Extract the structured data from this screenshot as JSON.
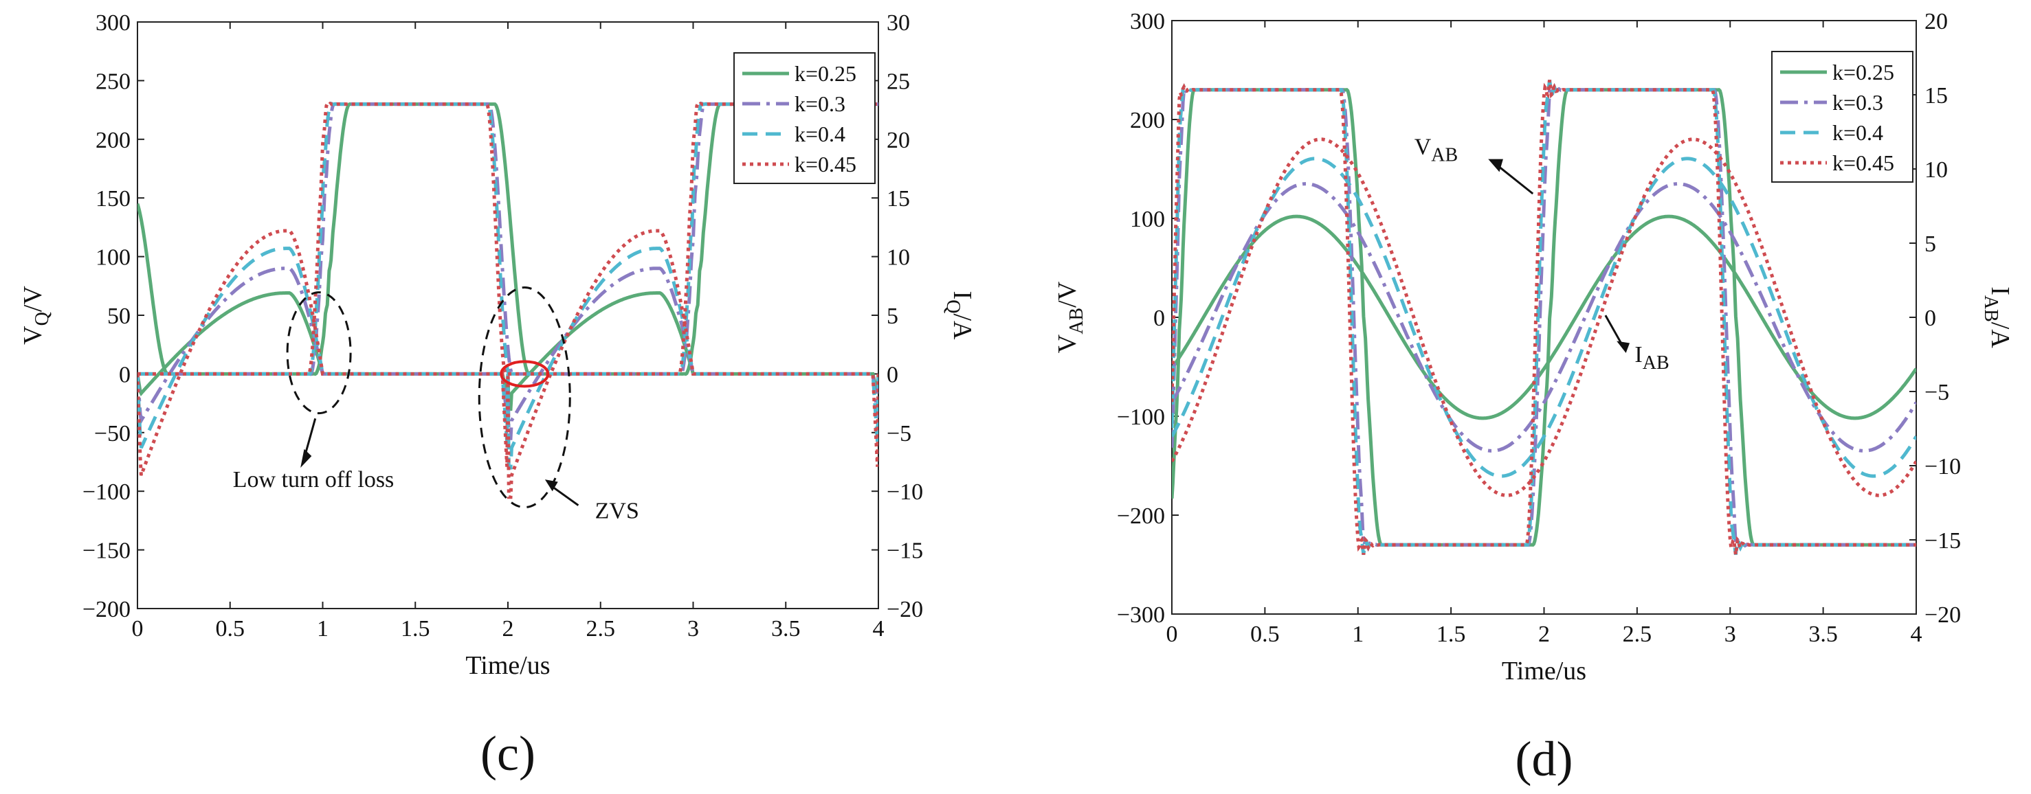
{
  "colors": {
    "k025": "#5aab78",
    "k03": "#8a7cc2",
    "k04": "#4fb8cf",
    "k045": "#cf4b50",
    "zvs_circle": "#e02020"
  },
  "chart_data": [
    {
      "id": "c",
      "type": "line",
      "panel_label": "(c)",
      "xlabel": "Time/us",
      "ylabel_main": "V",
      "ylabel_sub": "Q",
      "ylabel_tail": "/V",
      "y2label_main": "I",
      "y2label_sub": "Q",
      "y2label_tail": "/A",
      "xlim": [
        0,
        4
      ],
      "ylim": [
        -200,
        300
      ],
      "y2lim": [
        -20,
        30
      ],
      "xticks": [
        "0",
        "0.5",
        "1",
        "1.5",
        "2",
        "2.5",
        "3",
        "3.5",
        "4"
      ],
      "yticks": [
        "-200",
        "-150",
        "-100",
        "-50",
        "0",
        "50",
        "100",
        "150",
        "200",
        "250",
        "300"
      ],
      "y2ticks": [
        "-20",
        "-15",
        "-10",
        "-5",
        "0",
        "5",
        "10",
        "15",
        "20",
        "25",
        "30"
      ],
      "legend": [
        "k=0.25",
        "k=0.3",
        "k=0.4",
        "k=0.45"
      ],
      "legend_position": "top-right",
      "series": [
        {
          "name": "k=0.25",
          "style": "solid",
          "voltage_edge_delay_us": 0.16,
          "current_peak_A": 6.9
        },
        {
          "name": "k=0.3",
          "style": "dashdot",
          "voltage_edge_delay_us": 0.06,
          "current_peak_A": 9.0
        },
        {
          "name": "k=0.4",
          "style": "dashed",
          "voltage_edge_delay_us": 0.04,
          "current_peak_A": 10.7
        },
        {
          "name": "k=0.45",
          "style": "dotted",
          "voltage_edge_delay_us": 0.02,
          "current_peak_A": 12.2
        }
      ],
      "voltage_high_V": 230,
      "voltage_low_V": 0,
      "annotations": [
        "Low turn off loss",
        "ZVS"
      ]
    },
    {
      "id": "d",
      "type": "line",
      "panel_label": "(d)",
      "xlabel": "Time/us",
      "ylabel_main": "V",
      "ylabel_sub": "AB",
      "ylabel_tail": "/V",
      "y2label_main": "I",
      "y2label_sub": "AB",
      "y2label_tail": "/A",
      "xlim": [
        0,
        4
      ],
      "ylim": [
        -300,
        300
      ],
      "y2lim": [
        -20,
        20
      ],
      "xticks": [
        "0",
        "0.5",
        "1",
        "1.5",
        "2",
        "2.5",
        "3",
        "3.5",
        "4"
      ],
      "yticks": [
        "-300",
        "-200",
        "-100",
        "0",
        "100",
        "200",
        "300"
      ],
      "y2ticks": [
        "-20",
        "-15",
        "-10",
        "-5",
        "0",
        "5",
        "10",
        "15",
        "20"
      ],
      "legend": [
        "k=0.25",
        "k=0.3",
        "k=0.4",
        "k=0.45"
      ],
      "legend_position": "top-right",
      "series": [
        {
          "name": "k=0.25",
          "style": "solid",
          "voltage_edge_delay_us": 0.16,
          "current_amplitude_A": 6.8,
          "current_peak_time_us": 0.67
        },
        {
          "name": "k=0.3",
          "style": "dashdot",
          "voltage_edge_delay_us": 0.06,
          "current_amplitude_A": 9.0,
          "current_peak_time_us": 0.72
        },
        {
          "name": "k=0.4",
          "style": "dashed",
          "voltage_edge_delay_us": 0.04,
          "current_amplitude_A": 10.7,
          "current_peak_time_us": 0.77
        },
        {
          "name": "k=0.45",
          "style": "dotted",
          "voltage_edge_delay_us": 0.02,
          "current_amplitude_A": 12.0,
          "current_peak_time_us": 0.8
        }
      ],
      "voltage_amplitude_V": 230,
      "annotations": {
        "vab_main": "V",
        "vab_sub": "AB",
        "iab_main": "I",
        "iab_sub": "AB"
      }
    }
  ]
}
